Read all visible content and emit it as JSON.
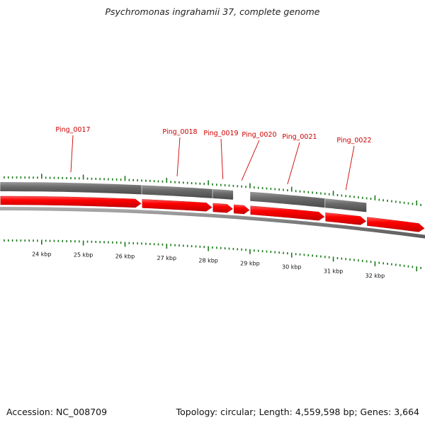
{
  "title": "Psychromonas ingrahamii 37, complete genome",
  "footer": {
    "accession": "Accession: NC_008709",
    "summary": "Topology: circular; Length: 4,559,598 bp; Genes: 3,664"
  },
  "colors": {
    "gene_forward": "#ff0000",
    "gene_reverse": "#666666",
    "gene_label": "#cc0000",
    "tick": "#1a7a1a",
    "backbone": "#808080"
  },
  "axis": {
    "unit": "kbp",
    "view_start_kbp": 23.0,
    "view_end_kbp": 33.2,
    "tick_labels": [
      "24 kbp",
      "25 kbp",
      "26 kbp",
      "27 kbp",
      "28 kbp",
      "29 kbp",
      "30 kbp",
      "31 kbp",
      "32 kbp"
    ]
  },
  "genes": [
    {
      "label": "Ping_0017",
      "start_kbp": 23.0,
      "end_kbp": 26.4,
      "strand": "+",
      "reverse_band": [
        23.0,
        26.4
      ]
    },
    {
      "label": "Ping_0018",
      "start_kbp": 26.4,
      "end_kbp": 28.1,
      "strand": "+",
      "reverse_band": [
        26.4,
        28.1
      ]
    },
    {
      "label": "Ping_0019",
      "start_kbp": 28.1,
      "end_kbp": 28.6,
      "strand": "+",
      "reverse_band": [
        28.1,
        28.6
      ]
    },
    {
      "label": "Ping_0020",
      "start_kbp": 28.6,
      "end_kbp": 29.0,
      "strand": "+",
      "reverse_band": null
    },
    {
      "label": "Ping_0021",
      "start_kbp": 29.0,
      "end_kbp": 30.8,
      "strand": "+",
      "reverse_band": [
        29.0,
        30.8
      ]
    },
    {
      "label": "Ping_0022",
      "start_kbp": 30.8,
      "end_kbp": 31.8,
      "strand": "+",
      "reverse_band": [
        30.8,
        31.8
      ]
    },
    {
      "label": "",
      "start_kbp": 31.8,
      "end_kbp": 33.2,
      "strand": "+",
      "reverse_band": null
    }
  ]
}
